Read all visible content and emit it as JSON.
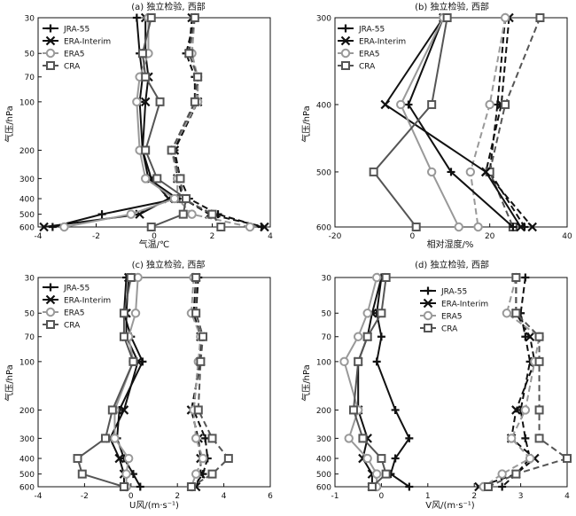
{
  "chart_data": [
    {
      "type": "line",
      "title": "(a) 独立检验, 西部",
      "xlabel": "气温/℃",
      "ylabel": "气压/hPa",
      "xlim": [
        -4,
        4
      ],
      "xticks": [
        -4,
        -2,
        0,
        2,
        4
      ],
      "yscale": "log",
      "y": [
        30,
        50,
        70,
        100,
        200,
        300,
        400,
        500,
        600
      ],
      "legend": "top-left",
      "series": [
        {
          "name": "JRA-55",
          "line": "solid",
          "values": [
            -0.6,
            -0.5,
            -0.4,
            -0.5,
            -0.4,
            -0.2,
            0.8,
            -1.8,
            -3.5
          ]
        },
        {
          "name": "ERA-Interim",
          "line": "solid",
          "values": [
            -0.3,
            -0.3,
            -0.2,
            -0.3,
            -0.4,
            -0.1,
            0.5,
            -0.5,
            -3.8
          ]
        },
        {
          "name": "ERA5",
          "line": "solid",
          "values": [
            -0.2,
            -0.2,
            -0.5,
            -0.6,
            -0.5,
            -0.3,
            0.7,
            -0.8,
            -3.1
          ]
        },
        {
          "name": "CRA",
          "line": "solid",
          "values": [
            -0.1,
            -0.4,
            -0.3,
            0.2,
            -0.3,
            0.1,
            1.1,
            1.0,
            -0.1
          ]
        },
        {
          "name": "JRA-55",
          "line": "dashed",
          "values": [
            1.4,
            1.1,
            1.4,
            1.4,
            0.7,
            0.9,
            1.2,
            2.2,
            3.7
          ]
        },
        {
          "name": "ERA-Interim",
          "line": "dashed",
          "values": [
            1.3,
            1.2,
            1.5,
            1.5,
            0.7,
            0.8,
            1.0,
            1.9,
            3.8
          ]
        },
        {
          "name": "ERA5",
          "line": "dashed",
          "values": [
            1.4,
            1.3,
            1.5,
            1.5,
            0.6,
            0.8,
            0.8,
            1.3,
            3.3
          ]
        },
        {
          "name": "CRA",
          "line": "dashed",
          "values": [
            1.4,
            1.2,
            1.5,
            1.4,
            0.6,
            0.9,
            1.0,
            2.0,
            2.3
          ]
        }
      ]
    },
    {
      "type": "line",
      "title": "(b) 独立检验, 西部",
      "xlabel": "相对湿度/%",
      "ylabel": "气压/hPa",
      "xlim": [
        -20,
        40
      ],
      "xticks": [
        -20,
        0,
        20,
        40
      ],
      "yscale": "log",
      "y": [
        300,
        400,
        500,
        600
      ],
      "legend": "top-left",
      "series": [
        {
          "name": "JRA-55",
          "line": "solid",
          "values": [
            8,
            -1,
            10,
            26
          ]
        },
        {
          "name": "ERA-Interim",
          "line": "solid",
          "values": [
            8,
            -7,
            19,
            28
          ]
        },
        {
          "name": "ERA5",
          "line": "solid",
          "values": [
            8,
            -3,
            5,
            12
          ]
        },
        {
          "name": "CRA",
          "line": "solid",
          "values": [
            9,
            5,
            -10,
            1
          ]
        },
        {
          "name": "JRA-55",
          "line": "dashed",
          "values": [
            24,
            22,
            20,
            29
          ]
        },
        {
          "name": "ERA-Interim",
          "line": "dashed",
          "values": [
            25,
            23,
            19,
            31
          ]
        },
        {
          "name": "ERA5",
          "line": "dashed",
          "values": [
            24,
            20,
            15,
            17
          ]
        },
        {
          "name": "CRA",
          "line": "dashed",
          "values": [
            33,
            24,
            20,
            26
          ]
        }
      ]
    },
    {
      "type": "line",
      "title": "(c) 独立检验, 西部",
      "xlabel": "U风/(m·s⁻¹)",
      "ylabel": "气压/hPa",
      "xlim": [
        -4,
        6
      ],
      "xticks": [
        -4,
        -2,
        0,
        2,
        4,
        6
      ],
      "yscale": "log",
      "y": [
        30,
        50,
        70,
        100,
        200,
        300,
        400,
        500,
        600
      ],
      "legend": "top-left",
      "series": [
        {
          "name": "JRA-55",
          "line": "solid",
          "values": [
            -0.2,
            -0.3,
            0.0,
            0.5,
            -0.5,
            -0.6,
            -0.3,
            0.1,
            0.4
          ]
        },
        {
          "name": "ERA-Interim",
          "line": "solid",
          "values": [
            -0.1,
            -0.2,
            -0.2,
            0.3,
            -0.3,
            -0.9,
            -0.5,
            -0.3,
            -0.3
          ]
        },
        {
          "name": "ERA5",
          "line": "solid",
          "values": [
            0.3,
            0.2,
            -0.1,
            0.1,
            -0.7,
            -0.7,
            -0.1,
            -0.2,
            -0.2
          ]
        },
        {
          "name": "CRA",
          "line": "solid",
          "values": [
            0.0,
            -0.3,
            -0.3,
            0.1,
            -0.8,
            -1.1,
            -2.3,
            -2.1,
            -0.3
          ]
        },
        {
          "name": "JRA-55",
          "line": "dashed",
          "values": [
            2.9,
            2.8,
            3.1,
            2.9,
            2.7,
            3.2,
            3.3,
            3.1,
            2.7
          ]
        },
        {
          "name": "ERA-Interim",
          "line": "dashed",
          "values": [
            2.8,
            2.7,
            3.0,
            3.0,
            2.6,
            2.9,
            3.0,
            3.0,
            2.8
          ]
        },
        {
          "name": "ERA5",
          "line": "dashed",
          "values": [
            2.7,
            2.6,
            3.0,
            2.9,
            2.7,
            2.8,
            3.1,
            2.8,
            2.6
          ]
        },
        {
          "name": "CRA",
          "line": "dashed",
          "values": [
            2.8,
            2.8,
            3.1,
            3.0,
            2.9,
            3.5,
            4.2,
            3.5,
            2.6
          ]
        }
      ]
    },
    {
      "type": "line",
      "title": "(d) 独立检验, 西部",
      "xlabel": "V风/(m·s⁻¹)",
      "ylabel": "气压/hPa",
      "xlim": [
        -1,
        4
      ],
      "xticks": [
        -1,
        0,
        1,
        2,
        3,
        4
      ],
      "yscale": "log",
      "y": [
        30,
        50,
        70,
        100,
        200,
        300,
        400,
        500,
        600
      ],
      "legend": "top-right",
      "series": [
        {
          "name": "JRA-55",
          "line": "solid",
          "values": [
            0.0,
            -0.1,
            0.0,
            -0.1,
            0.3,
            0.6,
            0.3,
            0.2,
            0.6
          ]
        },
        {
          "name": "ERA-Interim",
          "line": "solid",
          "values": [
            0.0,
            -0.2,
            -0.3,
            -0.5,
            -0.5,
            -0.3,
            -0.4,
            -0.2,
            -0.2
          ]
        },
        {
          "name": "ERA5",
          "line": "solid",
          "values": [
            -0.1,
            -0.3,
            -0.5,
            -0.8,
            -0.5,
            -0.7,
            -0.3,
            -0.1,
            -0.1
          ]
        },
        {
          "name": "CRA",
          "line": "solid",
          "values": [
            0.1,
            0.0,
            -0.3,
            -0.5,
            -0.6,
            -0.4,
            0.0,
            0.1,
            -0.2
          ]
        },
        {
          "name": "JRA-55",
          "line": "dashed",
          "values": [
            3.1,
            3.0,
            3.1,
            3.2,
            3.0,
            3.1,
            3.2,
            2.9,
            2.6
          ]
        },
        {
          "name": "ERA-Interim",
          "line": "dashed",
          "values": [
            2.9,
            2.9,
            3.2,
            3.3,
            2.9,
            2.8,
            3.3,
            2.9,
            2.1
          ]
        },
        {
          "name": "ERA5",
          "line": "dashed",
          "values": [
            2.9,
            2.7,
            3.4,
            3.3,
            3.1,
            2.8,
            3.2,
            2.6,
            2.2
          ]
        },
        {
          "name": "CRA",
          "line": "dashed",
          "values": [
            2.9,
            2.9,
            3.4,
            3.4,
            3.4,
            3.4,
            4.0,
            2.9,
            2.3
          ]
        }
      ]
    }
  ],
  "series_styles": [
    {
      "name": "JRA-55",
      "color": "#111111",
      "marker": "plus"
    },
    {
      "name": "ERA-Interim",
      "color": "#111111",
      "marker": "cross"
    },
    {
      "name": "ERA5",
      "color": "#999999",
      "marker": "circle"
    },
    {
      "name": "CRA",
      "color": "#555555",
      "marker": "square"
    }
  ]
}
